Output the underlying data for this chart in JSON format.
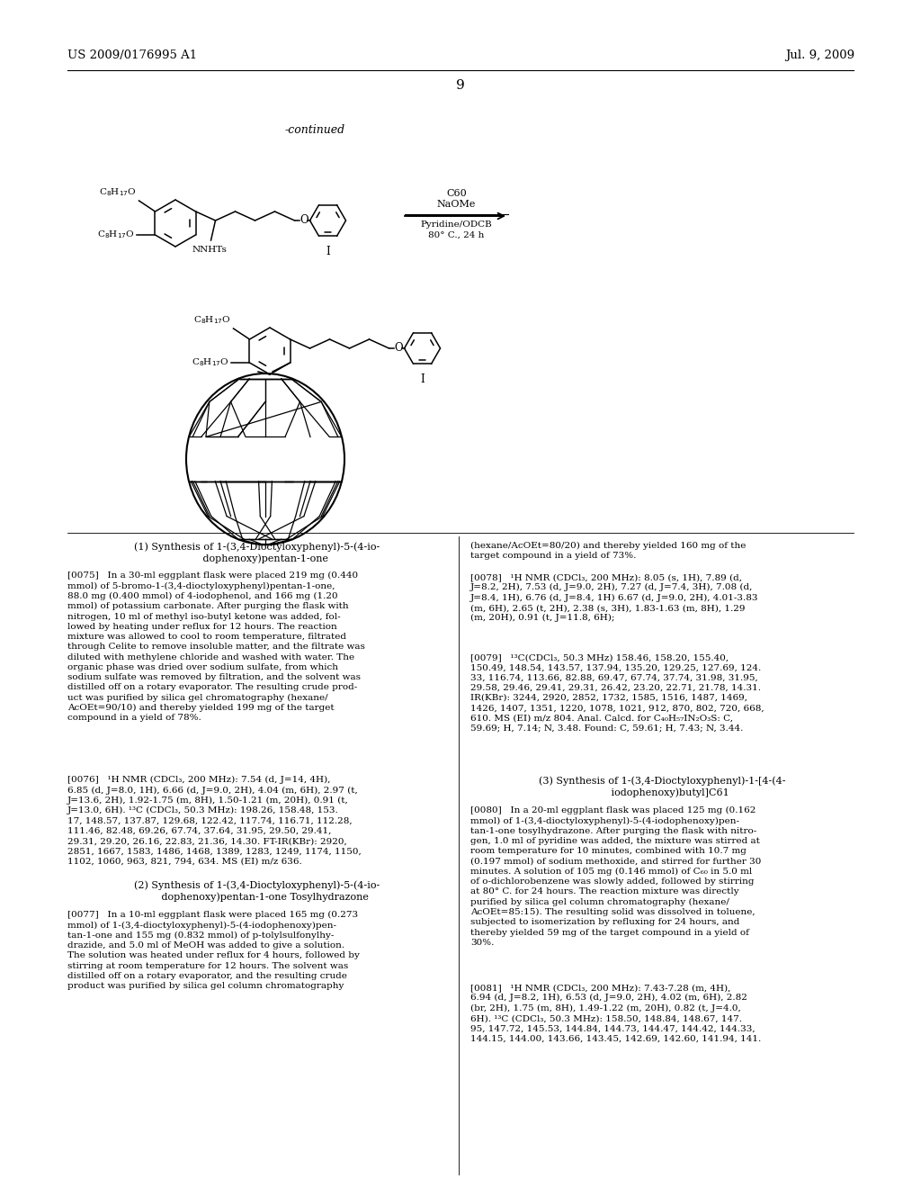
{
  "header_left": "US 2009/0176995 A1",
  "header_right": "Jul. 9, 2009",
  "page_number": "9",
  "background_color": "#ffffff",
  "text_color": "#000000",
  "figsize": [
    10.24,
    13.2
  ],
  "dpi": 100
}
